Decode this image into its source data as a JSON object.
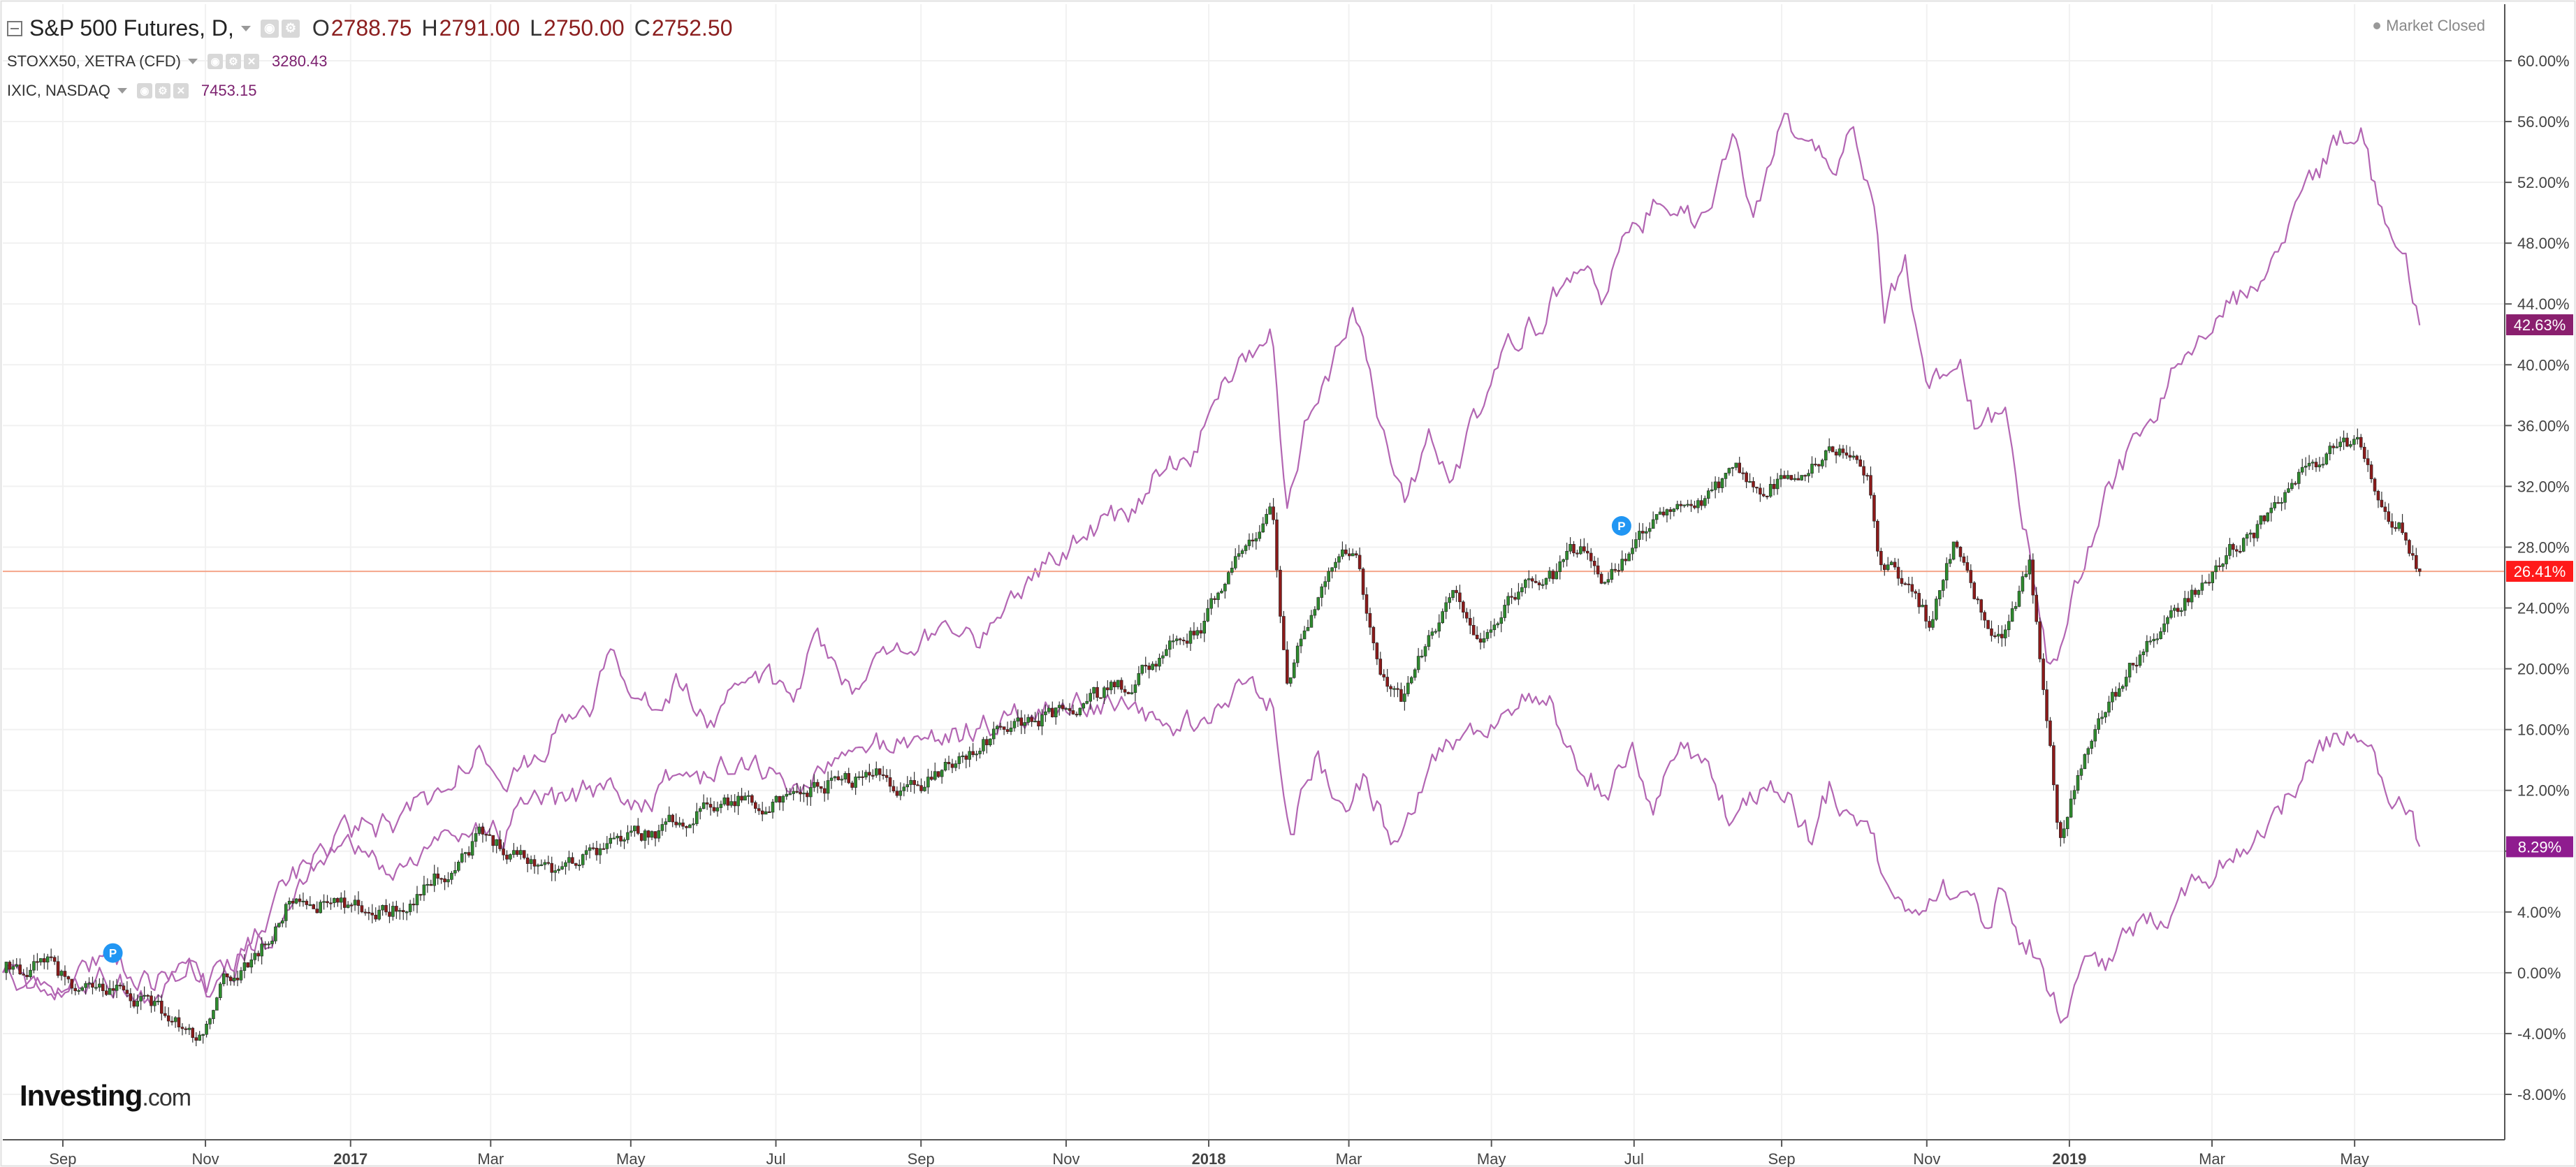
{
  "legend": {
    "main": {
      "symbol": "S&P 500 Futures, D,",
      "open_key": "O",
      "open": "2788.75",
      "high_key": "H",
      "high": "2791.00",
      "low_key": "L",
      "low": "2750.00",
      "close_key": "C",
      "close": "2752.50"
    },
    "stoxx": {
      "symbol": "STOXX50, XETRA (CFD)",
      "value": "3280.43"
    },
    "ixic": {
      "symbol": "IXIC, NASDAQ",
      "value": "7453.15"
    }
  },
  "status": "Market Closed",
  "logo": {
    "brand": "Investing",
    "suffix": ".com"
  },
  "colors": {
    "up_candle": "#2e8b2e",
    "down_candle": "#8b1a1a",
    "compare_line": "#b366b3",
    "price_line": "#f4a58a",
    "badge_spx": "#ff1a1a",
    "badge_ixic": "#8a1f6e",
    "badge_stoxx": "#8f1c8f",
    "p_marker": "#2196f3"
  },
  "chart_data": {
    "type": "line",
    "title": "",
    "y_unit": "percent change",
    "ylim": [
      -10,
      62
    ],
    "y_ticks": [
      "60.00%",
      "56.00%",
      "52.00%",
      "48.00%",
      "44.00%",
      "40.00%",
      "36.00%",
      "32.00%",
      "28.00%",
      "24.00%",
      "20.00%",
      "16.00%",
      "12.00%",
      "8.00%",
      "4.00%",
      "0.00%",
      "-4.00%",
      "-8.00%"
    ],
    "x_ticks": [
      {
        "label": "Sep",
        "bold": false,
        "t": 0.024
      },
      {
        "label": "Nov",
        "bold": false,
        "t": 0.081
      },
      {
        "label": "2017",
        "bold": true,
        "t": 0.139
      },
      {
        "label": "Mar",
        "bold": false,
        "t": 0.195
      },
      {
        "label": "May",
        "bold": false,
        "t": 0.251
      },
      {
        "label": "Jul",
        "bold": false,
        "t": 0.309
      },
      {
        "label": "Sep",
        "bold": false,
        "t": 0.367
      },
      {
        "label": "Nov",
        "bold": false,
        "t": 0.425
      },
      {
        "label": "2018",
        "bold": true,
        "t": 0.482
      },
      {
        "label": "Mar",
        "bold": false,
        "t": 0.538
      },
      {
        "label": "May",
        "bold": false,
        "t": 0.595
      },
      {
        "label": "Jul",
        "bold": false,
        "t": 0.652
      },
      {
        "label": "Sep",
        "bold": false,
        "t": 0.711
      },
      {
        "label": "Nov",
        "bold": false,
        "t": 0.769
      },
      {
        "label": "2019",
        "bold": true,
        "t": 0.826
      },
      {
        "label": "Mar",
        "bold": false,
        "t": 0.883
      },
      {
        "label": "May",
        "bold": false,
        "t": 0.94
      }
    ],
    "last_values": {
      "ixic": {
        "label": "42.63%",
        "value": 42.63
      },
      "spx": {
        "label": "26.41%",
        "value": 26.41
      },
      "stoxx": {
        "label": "8.29%",
        "value": 8.29
      }
    },
    "series": [
      {
        "key": "ixic",
        "style": "line",
        "points": [
          [
            0,
            0
          ],
          [
            0.02,
            -1.5
          ],
          [
            0.04,
            1.5
          ],
          [
            0.06,
            -0.5
          ],
          [
            0.075,
            1
          ],
          [
            0.082,
            -2.5
          ],
          [
            0.09,
            0
          ],
          [
            0.1,
            2
          ],
          [
            0.115,
            6
          ],
          [
            0.13,
            8.5
          ],
          [
            0.145,
            9.5
          ],
          [
            0.16,
            10
          ],
          [
            0.175,
            12
          ],
          [
            0.19,
            15
          ],
          [
            0.205,
            13
          ],
          [
            0.215,
            15
          ],
          [
            0.235,
            17.5
          ],
          [
            0.245,
            21
          ],
          [
            0.255,
            18
          ],
          [
            0.27,
            19
          ],
          [
            0.285,
            16
          ],
          [
            0.3,
            20
          ],
          [
            0.315,
            18
          ],
          [
            0.325,
            22
          ],
          [
            0.34,
            19
          ],
          [
            0.36,
            21.5
          ],
          [
            0.38,
            23
          ],
          [
            0.39,
            22
          ],
          [
            0.405,
            25
          ],
          [
            0.42,
            27.5
          ],
          [
            0.435,
            29
          ],
          [
            0.455,
            31
          ],
          [
            0.465,
            34
          ],
          [
            0.475,
            34
          ],
          [
            0.485,
            38
          ],
          [
            0.495,
            41
          ],
          [
            0.507,
            42
          ],
          [
            0.513,
            30
          ],
          [
            0.52,
            36
          ],
          [
            0.53,
            39
          ],
          [
            0.54,
            44
          ],
          [
            0.55,
            36
          ],
          [
            0.56,
            31
          ],
          [
            0.57,
            35
          ],
          [
            0.58,
            33
          ],
          [
            0.59,
            37
          ],
          [
            0.6,
            41
          ],
          [
            0.615,
            43
          ],
          [
            0.63,
            47
          ],
          [
            0.64,
            44
          ],
          [
            0.65,
            49
          ],
          [
            0.665,
            51
          ],
          [
            0.68,
            49
          ],
          [
            0.692,
            55
          ],
          [
            0.7,
            50
          ],
          [
            0.712,
            56
          ],
          [
            0.722,
            54
          ],
          [
            0.732,
            54
          ],
          [
            0.74,
            55
          ],
          [
            0.748,
            51
          ],
          [
            0.752,
            43
          ],
          [
            0.76,
            47
          ],
          [
            0.77,
            39
          ],
          [
            0.782,
            41
          ],
          [
            0.79,
            35
          ],
          [
            0.8,
            37
          ],
          [
            0.81,
            28
          ],
          [
            0.818,
            20
          ],
          [
            0.825,
            23
          ],
          [
            0.832,
            27
          ],
          [
            0.84,
            31
          ],
          [
            0.85,
            34
          ],
          [
            0.86,
            37
          ],
          [
            0.87,
            40
          ],
          [
            0.88,
            42
          ],
          [
            0.89,
            44
          ],
          [
            0.9,
            45
          ],
          [
            0.91,
            47
          ],
          [
            0.92,
            51
          ],
          [
            0.93,
            54
          ],
          [
            0.942,
            56
          ],
          [
            0.95,
            50
          ],
          [
            0.96,
            48
          ],
          [
            0.966,
            42.6
          ]
        ]
      },
      {
        "key": "stoxx",
        "style": "line",
        "points": [
          [
            0,
            0
          ],
          [
            0.02,
            -2
          ],
          [
            0.04,
            0
          ],
          [
            0.06,
            -2
          ],
          [
            0.075,
            0
          ],
          [
            0.082,
            -1
          ],
          [
            0.095,
            1
          ],
          [
            0.11,
            3
          ],
          [
            0.125,
            7
          ],
          [
            0.14,
            8
          ],
          [
            0.155,
            6.5
          ],
          [
            0.17,
            8
          ],
          [
            0.185,
            10
          ],
          [
            0.2,
            9
          ],
          [
            0.21,
            11
          ],
          [
            0.225,
            11
          ],
          [
            0.24,
            12.5
          ],
          [
            0.255,
            11
          ],
          [
            0.27,
            13
          ],
          [
            0.285,
            13
          ],
          [
            0.3,
            14
          ],
          [
            0.315,
            12
          ],
          [
            0.33,
            13.5
          ],
          [
            0.35,
            15
          ],
          [
            0.37,
            15.5
          ],
          [
            0.39,
            16
          ],
          [
            0.41,
            17
          ],
          [
            0.43,
            18
          ],
          [
            0.45,
            17
          ],
          [
            0.47,
            16
          ],
          [
            0.482,
            17
          ],
          [
            0.5,
            19
          ],
          [
            0.507,
            18
          ],
          [
            0.515,
            10
          ],
          [
            0.525,
            14
          ],
          [
            0.535,
            11
          ],
          [
            0.545,
            13
          ],
          [
            0.555,
            9
          ],
          [
            0.565,
            12
          ],
          [
            0.575,
            15
          ],
          [
            0.59,
            16
          ],
          [
            0.605,
            18
          ],
          [
            0.618,
            17.5
          ],
          [
            0.625,
            14
          ],
          [
            0.64,
            12
          ],
          [
            0.652,
            14
          ],
          [
            0.66,
            11
          ],
          [
            0.67,
            15
          ],
          [
            0.682,
            14
          ],
          [
            0.69,
            10
          ],
          [
            0.7,
            12
          ],
          [
            0.712,
            12.5
          ],
          [
            0.722,
            9
          ],
          [
            0.73,
            12
          ],
          [
            0.745,
            10
          ],
          [
            0.752,
            6
          ],
          [
            0.762,
            4
          ],
          [
            0.775,
            6
          ],
          [
            0.785,
            5
          ],
          [
            0.792,
            3
          ],
          [
            0.8,
            6
          ],
          [
            0.806,
            3
          ],
          [
            0.815,
            1
          ],
          [
            0.822,
            -3
          ],
          [
            0.83,
            0
          ],
          [
            0.842,
            1
          ],
          [
            0.855,
            3
          ],
          [
            0.87,
            5
          ],
          [
            0.885,
            7
          ],
          [
            0.9,
            9
          ],
          [
            0.91,
            11
          ],
          [
            0.92,
            13
          ],
          [
            0.93,
            15
          ],
          [
            0.942,
            16
          ],
          [
            0.95,
            13
          ],
          [
            0.96,
            11
          ],
          [
            0.966,
            8.3
          ]
        ]
      },
      {
        "key": "spx",
        "style": "candle",
        "points": [
          [
            0,
            0
          ],
          [
            0.02,
            0.5
          ],
          [
            0.03,
            -1.5
          ],
          [
            0.045,
            -1
          ],
          [
            0.06,
            -2
          ],
          [
            0.07,
            -3.5
          ],
          [
            0.08,
            -4.5
          ],
          [
            0.088,
            -1
          ],
          [
            0.1,
            1
          ],
          [
            0.11,
            3
          ],
          [
            0.115,
            5
          ],
          [
            0.13,
            4.5
          ],
          [
            0.145,
            4
          ],
          [
            0.16,
            4.5
          ],
          [
            0.17,
            6
          ],
          [
            0.18,
            7
          ],
          [
            0.19,
            9
          ],
          [
            0.2,
            8.5
          ],
          [
            0.21,
            7.5
          ],
          [
            0.22,
            7
          ],
          [
            0.235,
            8
          ],
          [
            0.25,
            9
          ],
          [
            0.265,
            9.5
          ],
          [
            0.28,
            11
          ],
          [
            0.3,
            11.5
          ],
          [
            0.315,
            11
          ],
          [
            0.33,
            12.5
          ],
          [
            0.35,
            13
          ],
          [
            0.365,
            12
          ],
          [
            0.38,
            14
          ],
          [
            0.4,
            16
          ],
          [
            0.42,
            17
          ],
          [
            0.435,
            18
          ],
          [
            0.45,
            19
          ],
          [
            0.465,
            21
          ],
          [
            0.48,
            23
          ],
          [
            0.49,
            26
          ],
          [
            0.5,
            29
          ],
          [
            0.507,
            31.5
          ],
          [
            0.513,
            19
          ],
          [
            0.52,
            23
          ],
          [
            0.53,
            26
          ],
          [
            0.54,
            28
          ],
          [
            0.55,
            20
          ],
          [
            0.56,
            18
          ],
          [
            0.57,
            22
          ],
          [
            0.58,
            25
          ],
          [
            0.59,
            22
          ],
          [
            0.6,
            24
          ],
          [
            0.61,
            26
          ],
          [
            0.62,
            26
          ],
          [
            0.63,
            28
          ],
          [
            0.64,
            26
          ],
          [
            0.65,
            28
          ],
          [
            0.665,
            30
          ],
          [
            0.68,
            31
          ],
          [
            0.695,
            33
          ],
          [
            0.705,
            32
          ],
          [
            0.72,
            33.5
          ],
          [
            0.735,
            34.5
          ],
          [
            0.745,
            33
          ],
          [
            0.75,
            27
          ],
          [
            0.76,
            26
          ],
          [
            0.77,
            23
          ],
          [
            0.78,
            28
          ],
          [
            0.79,
            24
          ],
          [
            0.8,
            22
          ],
          [
            0.81,
            27
          ],
          [
            0.815,
            20
          ],
          [
            0.822,
            9
          ],
          [
            0.83,
            13
          ],
          [
            0.84,
            17
          ],
          [
            0.85,
            20
          ],
          [
            0.86,
            22
          ],
          [
            0.87,
            24
          ],
          [
            0.88,
            26
          ],
          [
            0.89,
            28
          ],
          [
            0.9,
            29
          ],
          [
            0.91,
            31
          ],
          [
            0.92,
            33
          ],
          [
            0.93,
            34
          ],
          [
            0.942,
            35
          ],
          [
            0.95,
            31
          ],
          [
            0.96,
            29
          ],
          [
            0.966,
            26.4
          ]
        ]
      }
    ],
    "markers": [
      {
        "label": "P",
        "t": 0.044,
        "value": 1.3
      },
      {
        "label": "P",
        "t": 0.647,
        "value": 29.4
      }
    ],
    "grid": true
  }
}
